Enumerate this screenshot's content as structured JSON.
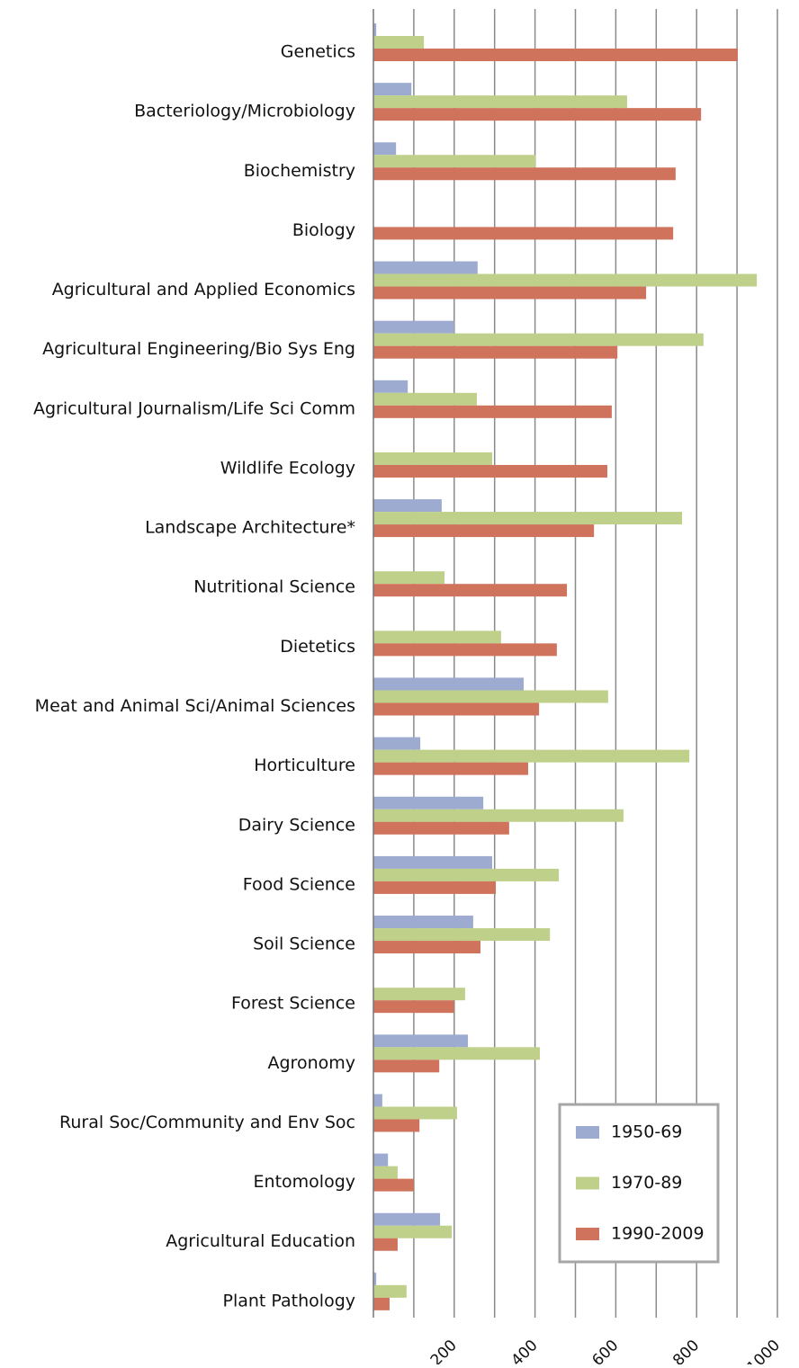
{
  "chart_data": {
    "type": "hbar",
    "categories": [
      "Genetics",
      "Bacteriology/Microbiology",
      "Biochemistry",
      "Biology",
      "Agricultural and Applied Economics",
      "Agricultural Engineering/Bio Sys Eng",
      "Agricultural Journalism/Life Sci Comm",
      "Wildlife Ecology",
      "Landscape Architecture*",
      "Nutritional Science",
      "Dietetics",
      "Meat and Animal Sci/Animal Sciences",
      "Horticulture",
      "Dairy Science",
      "Food Science",
      "Soil Science",
      "Forest Science",
      "Agronomy",
      "Rural Soc/Community and Env Soc",
      "Entomology",
      "Agricultural Education",
      "Plant Pathology"
    ],
    "series": [
      {
        "name": "1950-69",
        "color": "#9dabd0",
        "values": [
          7,
          94,
          56,
          null,
          258,
          200,
          85,
          null,
          169,
          null,
          null,
          372,
          116,
          272,
          294,
          247,
          null,
          234,
          22,
          36,
          165,
          7
        ]
      },
      {
        "name": "1970-89",
        "color": "#bfd08a",
        "values": [
          125,
          628,
          401,
          null,
          949,
          817,
          256,
          294,
          764,
          176,
          316,
          581,
          782,
          619,
          459,
          437,
          227,
          412,
          207,
          60,
          194,
          82
        ]
      },
      {
        "name": "1990-2009",
        "color": "#cf735c",
        "values": [
          902,
          811,
          748,
          742,
          675,
          604,
          590,
          579,
          546,
          479,
          454,
          410,
          383,
          336,
          303,
          265,
          200,
          163,
          114,
          100,
          60,
          40
        ]
      }
    ],
    "xlim": [
      0,
      1000
    ],
    "xticks": [
      200,
      400,
      600,
      800,
      1000
    ],
    "minor_xticks": [
      100,
      300,
      500,
      700,
      900
    ],
    "grid": true,
    "legend": "lower-right"
  }
}
